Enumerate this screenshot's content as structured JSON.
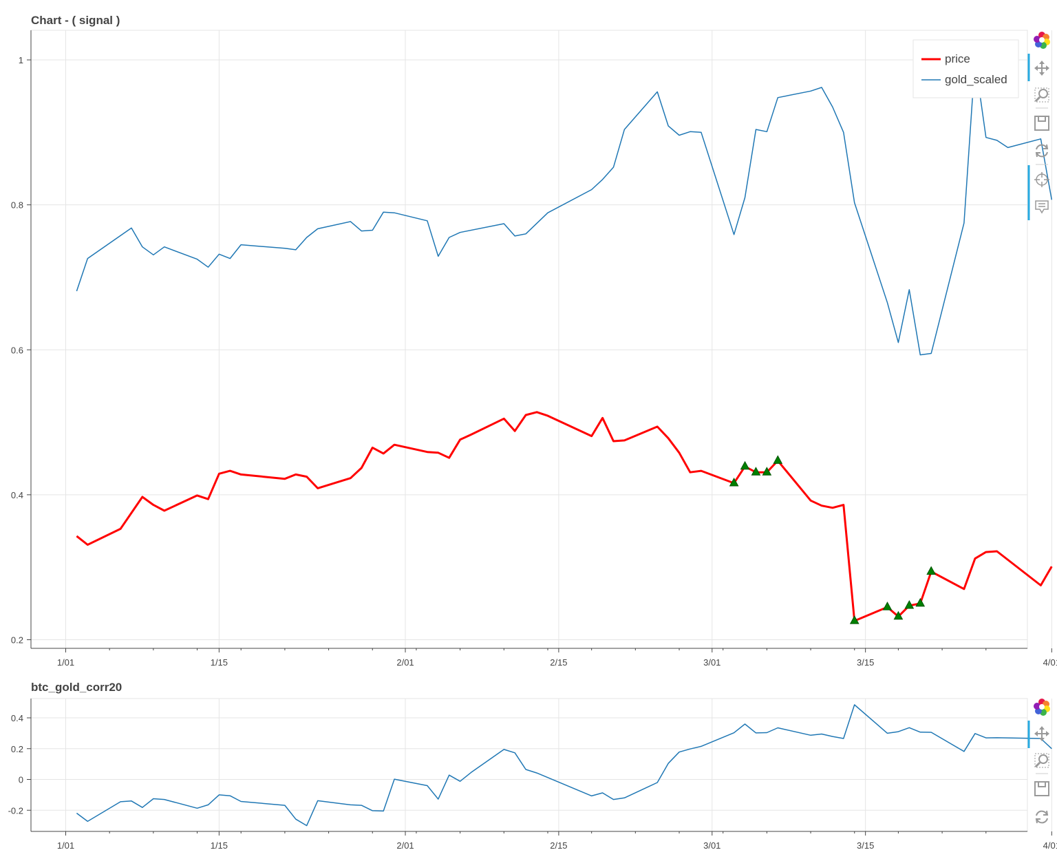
{
  "chart_data": [
    {
      "type": "line",
      "title": "Chart - ( signal )",
      "x_ticks": [
        "1/01",
        "1/15",
        "2/01",
        "2/15",
        "3/01",
        "3/15",
        "4/01"
      ],
      "y_ticks": [
        "0.2",
        "0.4",
        "0.6",
        "0.8",
        "1"
      ],
      "ylim": [
        0.2,
        1.0
      ],
      "grid": true,
      "legend_position": "top-right",
      "series": [
        {
          "name": "price",
          "color": "#ff0000",
          "x": [
            "2025-01-02",
            "2025-01-03",
            "2025-01-06",
            "2025-01-08",
            "2025-01-09",
            "2025-01-10",
            "2025-01-13",
            "2025-01-14",
            "2025-01-15",
            "2025-01-16",
            "2025-01-17",
            "2025-01-21",
            "2025-01-22",
            "2025-01-23",
            "2025-01-24",
            "2025-01-27",
            "2025-01-28",
            "2025-01-29",
            "2025-01-30",
            "2025-01-31",
            "2025-02-03",
            "2025-02-04",
            "2025-02-05",
            "2025-02-06",
            "2025-02-07",
            "2025-02-10",
            "2025-02-11",
            "2025-02-12",
            "2025-02-13",
            "2025-02-14",
            "2025-02-18",
            "2025-02-19",
            "2025-02-20",
            "2025-02-21",
            "2025-02-24",
            "2025-02-25",
            "2025-02-26",
            "2025-02-27",
            "2025-02-28",
            "2025-03-03",
            "2025-03-04",
            "2025-03-05",
            "2025-03-06",
            "2025-03-07",
            "2025-03-10",
            "2025-03-11",
            "2025-03-12",
            "2025-03-13",
            "2025-03-14",
            "2025-03-17",
            "2025-03-18",
            "2025-03-19",
            "2025-03-20",
            "2025-03-21",
            "2025-03-24",
            "2025-03-25",
            "2025-03-26",
            "2025-03-27",
            "2025-03-31",
            "2025-04-01"
          ],
          "y": [
            0.343,
            0.331,
            0.353,
            0.397,
            0.386,
            0.378,
            0.399,
            0.394,
            0.429,
            0.433,
            0.428,
            0.422,
            0.428,
            0.425,
            0.409,
            0.423,
            0.437,
            0.465,
            0.457,
            0.469,
            0.459,
            0.458,
            0.451,
            0.476,
            0.483,
            0.505,
            0.488,
            0.51,
            0.514,
            0.509,
            0.481,
            0.506,
            0.474,
            0.475,
            0.494,
            0.478,
            0.458,
            0.431,
            0.433,
            0.416,
            0.439,
            0.431,
            0.431,
            0.447,
            0.392,
            0.385,
            0.382,
            0.386,
            0.226,
            0.245,
            0.232,
            0.247,
            0.25,
            0.294,
            0.27,
            0.312,
            0.321,
            0.322,
            0.275,
            0.301
          ]
        },
        {
          "name": "gold_scaled",
          "color": "#1f77b4",
          "x": [
            "2025-01-02",
            "2025-01-03",
            "2025-01-07",
            "2025-01-08",
            "2025-01-09",
            "2025-01-10",
            "2025-01-13",
            "2025-01-14",
            "2025-01-15",
            "2025-01-16",
            "2025-01-17",
            "2025-01-21",
            "2025-01-22",
            "2025-01-23",
            "2025-01-24",
            "2025-01-27",
            "2025-01-28",
            "2025-01-29",
            "2025-01-30",
            "2025-01-31",
            "2025-02-03",
            "2025-02-04",
            "2025-02-05",
            "2025-02-06",
            "2025-02-10",
            "2025-02-11",
            "2025-02-12",
            "2025-02-14",
            "2025-02-18",
            "2025-02-19",
            "2025-02-20",
            "2025-02-21",
            "2025-02-24",
            "2025-02-25",
            "2025-02-26",
            "2025-02-27",
            "2025-02-28",
            "2025-03-03",
            "2025-03-04",
            "2025-03-05",
            "2025-03-06",
            "2025-03-07",
            "2025-03-10",
            "2025-03-11",
            "2025-03-12",
            "2025-03-13",
            "2025-03-14",
            "2025-03-17",
            "2025-03-18",
            "2025-03-19",
            "2025-03-20",
            "2025-03-21",
            "2025-03-24",
            "2025-03-25",
            "2025-03-26",
            "2025-03-27",
            "2025-03-28",
            "2025-03-31",
            "2025-04-01"
          ],
          "y": [
            0.681,
            0.726,
            0.768,
            0.742,
            0.731,
            0.742,
            0.725,
            0.714,
            0.732,
            0.726,
            0.745,
            0.74,
            0.738,
            0.755,
            0.767,
            0.777,
            0.764,
            0.765,
            0.79,
            0.789,
            0.778,
            0.729,
            0.755,
            0.762,
            0.774,
            0.757,
            0.76,
            0.789,
            0.821,
            0.835,
            0.852,
            0.904,
            0.956,
            0.909,
            0.896,
            0.901,
            0.9,
            0.759,
            0.81,
            0.904,
            0.901,
            0.948,
            0.957,
            0.962,
            0.935,
            0.9,
            0.803,
            0.665,
            0.61,
            0.683,
            0.593,
            0.595,
            0.775,
            1.0,
            0.893,
            0.889,
            0.879,
            0.891,
            0.807
          ]
        }
      ],
      "markers": {
        "shape": "triangle",
        "color": "#008000",
        "x": [
          "2025-03-03",
          "2025-03-04",
          "2025-03-05",
          "2025-03-06",
          "2025-03-07",
          "2025-03-14",
          "2025-03-17",
          "2025-03-18",
          "2025-03-19",
          "2025-03-20",
          "2025-03-21"
        ],
        "y": [
          0.416,
          0.439,
          0.431,
          0.431,
          0.447,
          0.226,
          0.245,
          0.232,
          0.247,
          0.25,
          0.294
        ]
      }
    },
    {
      "type": "line",
      "title": "btc_gold_corr20",
      "x_ticks": [
        "1/01",
        "1/15",
        "2/01",
        "2/15",
        "3/01",
        "3/15",
        "4/01"
      ],
      "y_ticks": [
        "-0.2",
        "0",
        "0.2",
        "0.4"
      ],
      "ylim": [
        -0.3,
        0.52
      ],
      "grid": true,
      "series": [
        {
          "color": "#1f77b4",
          "x": [
            "2025-01-02",
            "2025-01-03",
            "2025-01-06",
            "2025-01-07",
            "2025-01-08",
            "2025-01-09",
            "2025-01-10",
            "2025-01-13",
            "2025-01-14",
            "2025-01-15",
            "2025-01-16",
            "2025-01-17",
            "2025-01-21",
            "2025-01-22",
            "2025-01-23",
            "2025-01-24",
            "2025-01-27",
            "2025-01-28",
            "2025-01-29",
            "2025-01-30",
            "2025-01-31",
            "2025-02-03",
            "2025-02-04",
            "2025-02-05",
            "2025-02-06",
            "2025-02-07",
            "2025-02-10",
            "2025-02-11",
            "2025-02-12",
            "2025-02-13",
            "2025-02-18",
            "2025-02-19",
            "2025-02-20",
            "2025-02-21",
            "2025-02-24",
            "2025-02-25",
            "2025-02-26",
            "2025-02-27",
            "2025-02-28",
            "2025-03-03",
            "2025-03-04",
            "2025-03-05",
            "2025-03-06",
            "2025-03-07",
            "2025-03-10",
            "2025-03-11",
            "2025-03-12",
            "2025-03-13",
            "2025-03-14",
            "2025-03-17",
            "2025-03-18",
            "2025-03-19",
            "2025-03-20",
            "2025-03-21",
            "2025-03-24",
            "2025-03-25",
            "2025-03-26",
            "2025-03-27",
            "2025-03-31",
            "2025-04-01"
          ],
          "y": [
            -0.219,
            -0.272,
            -0.145,
            -0.14,
            -0.182,
            -0.125,
            -0.13,
            -0.187,
            -0.165,
            -0.1,
            -0.106,
            -0.143,
            -0.168,
            -0.258,
            -0.3,
            -0.138,
            -0.165,
            -0.168,
            -0.203,
            -0.205,
            0.002,
            -0.04,
            -0.128,
            0.028,
            -0.012,
            0.045,
            0.195,
            0.173,
            0.065,
            0.042,
            -0.107,
            -0.087,
            -0.13,
            -0.12,
            -0.02,
            0.104,
            0.178,
            0.198,
            0.215,
            0.303,
            0.36,
            0.302,
            0.304,
            0.335,
            0.287,
            0.295,
            0.279,
            0.266,
            0.485,
            0.3,
            0.31,
            0.336,
            0.307,
            0.306,
            0.182,
            0.298,
            0.27,
            0.271,
            0.266,
            0.2
          ]
        }
      ]
    }
  ],
  "toolbar": {
    "main": [
      "bokeh-logo-icon",
      "pan-icon",
      "box-zoom-icon",
      "save-icon",
      "reset-icon",
      "crosshair-icon",
      "hover-icon"
    ],
    "sub": [
      "bokeh-logo-icon",
      "pan-icon",
      "box-zoom-icon",
      "save-icon",
      "reset-icon"
    ]
  }
}
